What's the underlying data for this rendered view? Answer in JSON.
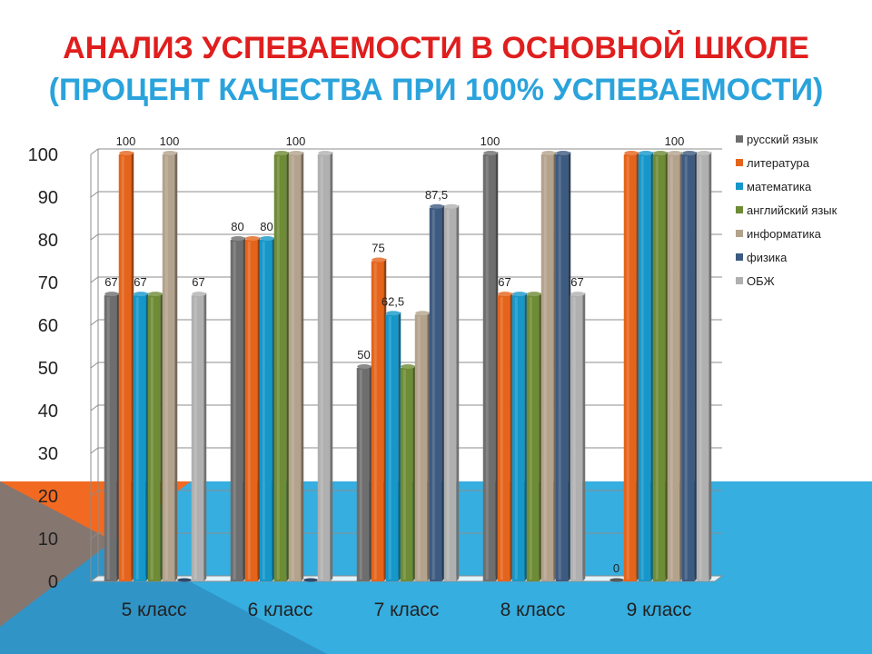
{
  "title": "АНАЛИЗ УСПЕВАЕМОСТИ В ОСНОВНОЙ ШКОЛЕ",
  "subtitle": "(ПРОЦЕНТ КАЧЕСТВА ПРИ 100% УСПЕВАЕМОСТИ)",
  "colors": {
    "background_blue": "#36aee0",
    "background_orange": "#f26a21",
    "background_dark_blue": "#2b7fb3",
    "title_red": "#e01e1e",
    "subtitle_blue": "#2aa3dc"
  },
  "chart_data": {
    "type": "bar",
    "categories": [
      "5 класс",
      "6 класс",
      "7 класс",
      "8 класс",
      "9 класс"
    ],
    "ylim": [
      0,
      100
    ],
    "yticks": [
      0,
      10,
      20,
      30,
      40,
      50,
      60,
      70,
      80,
      90,
      100
    ],
    "grid": true,
    "legend_position": "right",
    "series": [
      {
        "name": "русский язык",
        "color": "#6e6e6e",
        "values": [
          67,
          80,
          50,
          100,
          0
        ],
        "labels": [
          "67",
          "80",
          "50",
          "100",
          "0"
        ]
      },
      {
        "name": "литература",
        "color": "#e5641b",
        "values": [
          100,
          80,
          75,
          67,
          100
        ],
        "labels": [
          "100",
          "",
          "75",
          "67",
          ""
        ]
      },
      {
        "name": "математика",
        "color": "#1597c9",
        "values": [
          67,
          80,
          62.5,
          67,
          100
        ],
        "labels": [
          "67",
          "80",
          "62,5",
          "",
          ""
        ]
      },
      {
        "name": "английский язык",
        "color": "#6e8b35",
        "values": [
          67,
          100,
          50,
          67,
          100
        ],
        "labels": [
          "",
          "",
          "",
          "",
          ""
        ]
      },
      {
        "name": "информатика",
        "color": "#b3a28c",
        "values": [
          100,
          100,
          62.5,
          100,
          100
        ],
        "labels": [
          "100",
          "100",
          "",
          "",
          "100"
        ]
      },
      {
        "name": "физика",
        "color": "#3d5a80",
        "values": [
          0,
          0,
          87.5,
          100,
          100
        ],
        "labels": [
          "",
          "",
          "87,5",
          "",
          ""
        ]
      },
      {
        "name": "ОБЖ",
        "color": "#b0b0b0",
        "values": [
          67,
          100,
          87.5,
          67,
          100
        ],
        "labels": [
          "67",
          "",
          "",
          "67",
          ""
        ]
      }
    ]
  }
}
